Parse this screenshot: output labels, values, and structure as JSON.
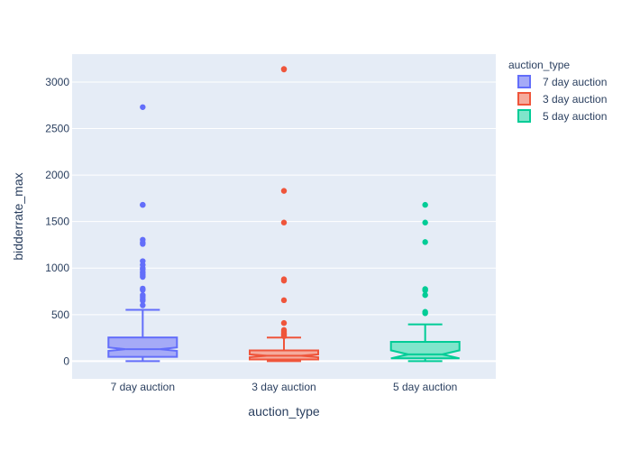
{
  "chart_data": {
    "type": "box",
    "notched": true,
    "xlabel": "auction_type",
    "ylabel": "bidderrate_max",
    "ylim": [
      -190,
      3300
    ],
    "yticks": [
      0,
      500,
      1000,
      1500,
      2000,
      2500,
      3000
    ],
    "grid": true,
    "legend": {
      "title": "auction_type",
      "placement": "top-right"
    },
    "plot_background": "#e5ecf6",
    "series": [
      {
        "name": "7 day auction",
        "color": "#636efa",
        "fill": "#a5aaf7",
        "lowerfence": 0,
        "q1": 47,
        "median": 129,
        "q3": 255,
        "upperfence": 552,
        "notch": [
          111,
          147
        ],
        "outliers": [
          2730,
          1680,
          1680,
          1305,
          1275,
          1260,
          1075,
          1035,
          1000,
          985,
          960,
          945,
          925,
          905,
          780,
          765,
          710,
          690,
          665,
          650,
          600
        ]
      },
      {
        "name": "3 day auction",
        "color": "#ef553b",
        "fill": "#f5ab9d",
        "lowerfence": 0,
        "q1": 18,
        "median": 58,
        "q3": 115,
        "upperfence": 253,
        "notch": [
          43,
          73
        ],
        "outliers": [
          3140,
          3135,
          1830,
          1490,
          880,
          865,
          655,
          410,
          335,
          320,
          305,
          290,
          280,
          268
        ]
      },
      {
        "name": "5 day auction",
        "color": "#00cc96",
        "fill": "#80e5cb",
        "lowerfence": 0,
        "q1": 30,
        "median": 73,
        "q3": 207,
        "upperfence": 395,
        "notch": [
          30,
          116
        ],
        "outliers": [
          1680,
          1490,
          1280,
          775,
          760,
          710,
          530,
          515
        ]
      }
    ]
  }
}
